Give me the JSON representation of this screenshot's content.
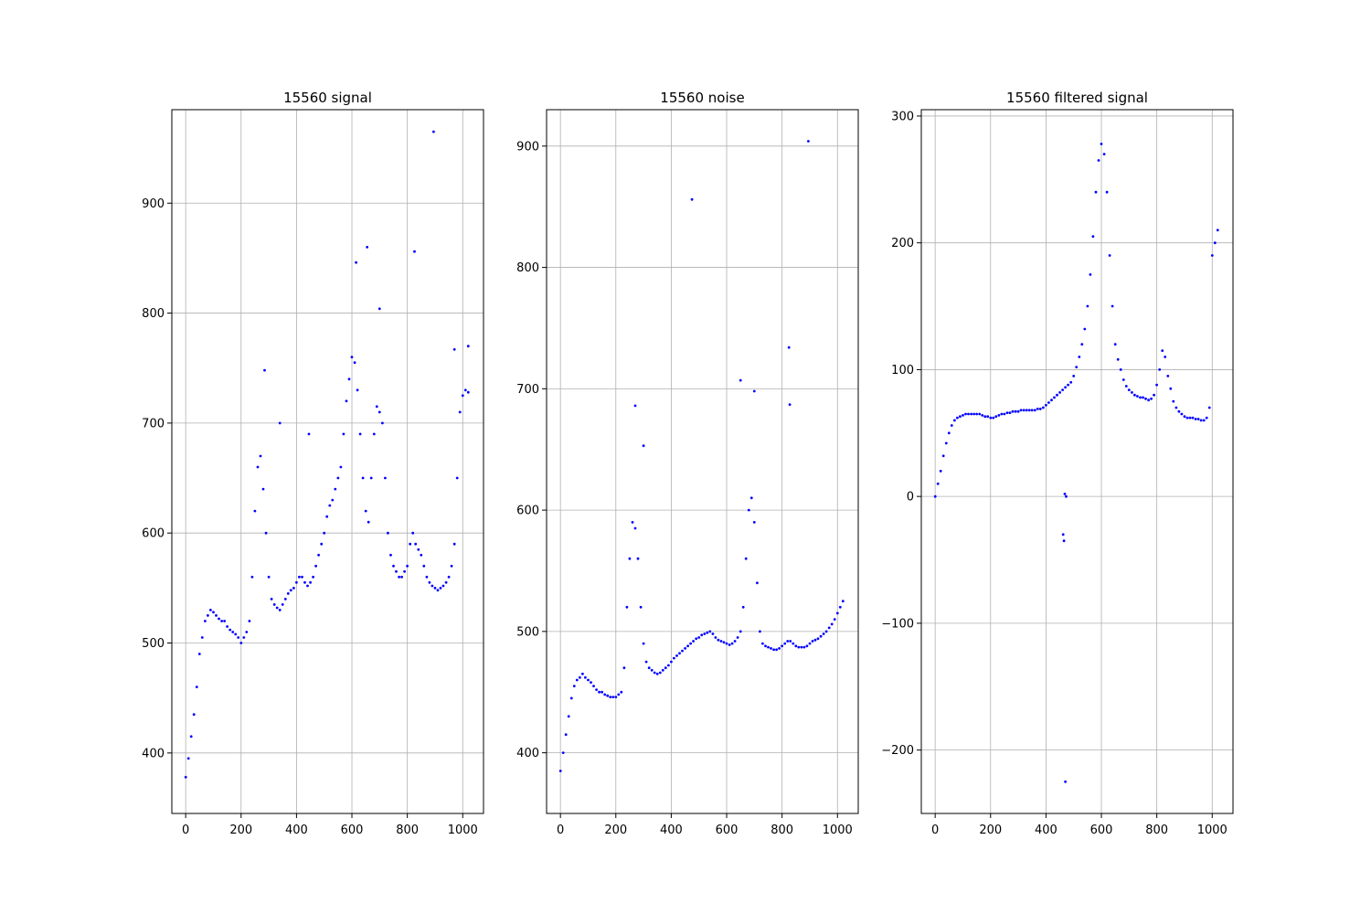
{
  "chart_data": [
    {
      "type": "scatter",
      "title": "15560 signal",
      "xlabel": "",
      "ylabel": "",
      "xlim": [
        -50,
        1075
      ],
      "ylim": [
        345,
        985
      ],
      "xticks": [
        0,
        200,
        400,
        600,
        800,
        1000
      ],
      "yticks": [
        400,
        500,
        600,
        700,
        800,
        900
      ],
      "grid": true,
      "marker_color": "#0000ff",
      "series": [
        {
          "x": [
            0,
            10,
            20,
            30,
            40,
            50,
            60,
            70,
            80,
            90,
            100,
            110,
            120,
            130,
            140,
            150,
            160,
            170,
            180,
            190,
            200,
            210,
            220,
            230,
            240,
            250,
            260,
            270,
            280,
            290,
            300,
            310,
            320,
            330,
            340,
            350,
            360,
            370,
            380,
            390,
            400,
            410,
            420,
            430,
            440,
            450,
            460,
            470,
            480,
            490,
            500,
            510,
            520,
            530,
            540,
            550,
            560,
            570,
            580,
            590,
            600,
            610,
            620,
            630,
            640,
            650,
            660,
            670,
            680,
            690,
            700,
            710,
            720,
            730,
            740,
            750,
            760,
            770,
            780,
            790,
            800,
            810,
            820,
            830,
            840,
            850,
            860,
            870,
            880,
            890,
            900,
            910,
            920,
            930,
            940,
            950,
            960,
            970,
            980,
            990,
            1000,
            1010,
            1020,
            285,
            340,
            445,
            615,
            655,
            700,
            826,
            895,
            970,
            1020
          ],
          "y": [
            378,
            395,
            415,
            435,
            460,
            490,
            505,
            520,
            525,
            530,
            528,
            525,
            522,
            520,
            520,
            515,
            512,
            510,
            508,
            505,
            500,
            505,
            510,
            520,
            560,
            620,
            660,
            670,
            640,
            600,
            560,
            540,
            535,
            532,
            530,
            535,
            540,
            545,
            548,
            550,
            555,
            560,
            560,
            555,
            552,
            555,
            560,
            570,
            580,
            590,
            600,
            615,
            625,
            630,
            640,
            650,
            660,
            690,
            720,
            740,
            760,
            755,
            730,
            690,
            650,
            620,
            610,
            650,
            690,
            715,
            710,
            700,
            650,
            600,
            580,
            570,
            565,
            560,
            560,
            565,
            570,
            590,
            600,
            590,
            585,
            580,
            570,
            560,
            555,
            552,
            550,
            548,
            550,
            552,
            555,
            560,
            570,
            590,
            650,
            710,
            725,
            730,
            728,
            748,
            700,
            690,
            846,
            860,
            804,
            856,
            965,
            767,
            770
          ]
        }
      ]
    },
    {
      "type": "scatter",
      "title": "15560 noise",
      "xlabel": "",
      "ylabel": "",
      "xlim": [
        -50,
        1075
      ],
      "ylim": [
        350,
        930
      ],
      "xticks": [
        0,
        200,
        400,
        600,
        800,
        1000
      ],
      "yticks": [
        400,
        500,
        600,
        700,
        800,
        900
      ],
      "grid": true,
      "marker_color": "#0000ff",
      "series": [
        {
          "x": [
            0,
            10,
            20,
            30,
            40,
            50,
            60,
            70,
            80,
            90,
            100,
            110,
            120,
            130,
            140,
            150,
            160,
            170,
            180,
            190,
            200,
            210,
            220,
            230,
            240,
            250,
            260,
            270,
            280,
            290,
            300,
            310,
            320,
            330,
            340,
            350,
            360,
            370,
            380,
            390,
            400,
            410,
            420,
            430,
            440,
            450,
            460,
            470,
            480,
            490,
            500,
            510,
            520,
            530,
            540,
            550,
            560,
            570,
            580,
            590,
            600,
            610,
            620,
            630,
            640,
            650,
            660,
            670,
            680,
            690,
            700,
            710,
            720,
            730,
            740,
            750,
            760,
            770,
            780,
            790,
            800,
            810,
            820,
            830,
            840,
            850,
            860,
            870,
            880,
            890,
            900,
            910,
            920,
            930,
            940,
            950,
            960,
            970,
            980,
            990,
            1000,
            1010,
            1020,
            270,
            300,
            475,
            650,
            700,
            825,
            828,
            895
          ],
          "y": [
            385,
            400,
            415,
            430,
            445,
            455,
            460,
            462,
            465,
            462,
            460,
            458,
            455,
            452,
            450,
            450,
            448,
            447,
            446,
            446,
            446,
            448,
            450,
            470,
            520,
            560,
            590,
            585,
            560,
            520,
            490,
            475,
            470,
            468,
            466,
            465,
            466,
            468,
            470,
            472,
            475,
            478,
            480,
            482,
            484,
            486,
            488,
            490,
            492,
            494,
            495,
            497,
            498,
            499,
            500,
            498,
            495,
            493,
            492,
            491,
            490,
            489,
            490,
            492,
            495,
            500,
            520,
            560,
            600,
            610,
            590,
            540,
            500,
            490,
            488,
            487,
            486,
            485,
            485,
            486,
            488,
            490,
            492,
            492,
            490,
            488,
            487,
            487,
            487,
            488,
            490,
            492,
            493,
            494,
            496,
            498,
            500,
            503,
            506,
            510,
            515,
            520,
            525,
            686,
            653,
            856,
            707,
            698,
            734,
            687,
            904
          ]
        }
      ]
    },
    {
      "type": "scatter",
      "title": "15560 filtered signal",
      "xlabel": "",
      "ylabel": "",
      "xlim": [
        -50,
        1075
      ],
      "ylim": [
        -250,
        305
      ],
      "xticks": [
        0,
        200,
        400,
        600,
        800,
        1000
      ],
      "yticks": [
        -200,
        -100,
        0,
        100,
        200,
        300
      ],
      "grid": true,
      "marker_color": "#0000ff",
      "series": [
        {
          "x": [
            0,
            10,
            20,
            30,
            40,
            50,
            60,
            70,
            80,
            90,
            100,
            110,
            120,
            130,
            140,
            150,
            160,
            170,
            180,
            190,
            200,
            210,
            220,
            230,
            240,
            250,
            260,
            270,
            280,
            290,
            300,
            310,
            320,
            330,
            340,
            350,
            360,
            370,
            380,
            390,
            400,
            410,
            420,
            430,
            440,
            450,
            460,
            470,
            480,
            490,
            500,
            510,
            520,
            530,
            540,
            550,
            560,
            570,
            580,
            590,
            600,
            610,
            620,
            630,
            640,
            650,
            660,
            670,
            680,
            690,
            700,
            710,
            720,
            730,
            740,
            750,
            760,
            770,
            780,
            790,
            800,
            810,
            820,
            830,
            840,
            850,
            860,
            870,
            880,
            890,
            900,
            910,
            920,
            930,
            940,
            950,
            960,
            970,
            980,
            990,
            1000,
            1010,
            1020,
            462,
            465,
            468,
            470,
            473
          ],
          "y": [
            0,
            10,
            20,
            32,
            42,
            50,
            56,
            60,
            62,
            63,
            64,
            65,
            65,
            65,
            65,
            65,
            65,
            64,
            63,
            63,
            62,
            62,
            63,
            64,
            65,
            65,
            66,
            66,
            67,
            67,
            67,
            68,
            68,
            68,
            68,
            68,
            68,
            69,
            69,
            70,
            72,
            74,
            76,
            78,
            80,
            82,
            84,
            86,
            88,
            90,
            95,
            102,
            110,
            120,
            132,
            150,
            175,
            205,
            240,
            265,
            278,
            270,
            240,
            190,
            150,
            120,
            108,
            100,
            92,
            87,
            84,
            82,
            80,
            79,
            78,
            78,
            77,
            76,
            77,
            80,
            88,
            100,
            115,
            110,
            95,
            85,
            75,
            70,
            67,
            65,
            63,
            62,
            62,
            62,
            61,
            61,
            60,
            60,
            62,
            70,
            190,
            200,
            210,
            -30,
            -35,
            2,
            -225,
            0
          ]
        }
      ]
    }
  ]
}
